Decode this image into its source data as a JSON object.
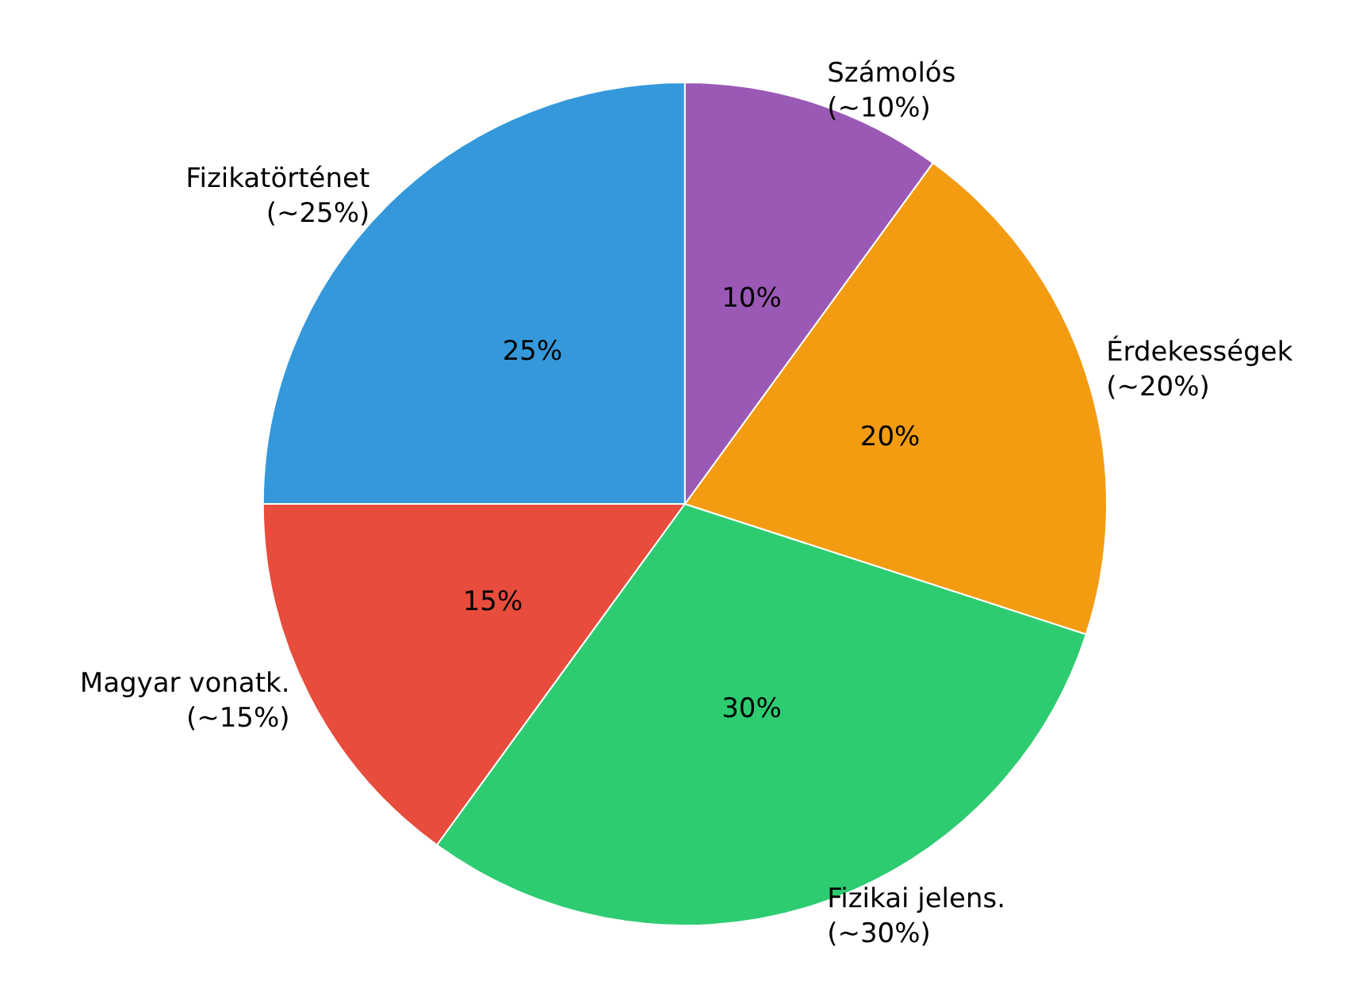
{
  "chart_data": {
    "type": "pie",
    "categories": [
      "Fizikatörténet\n(~25%)",
      "Magyar vonatk.\n(~15%)",
      "Fizikai jelens.\n(~30%)",
      "Érdekességek\n(~20%)",
      "Számolós\n(~10%)"
    ],
    "values": [
      25,
      15,
      30,
      20,
      10
    ],
    "value_labels": [
      "25%",
      "15%",
      "30%",
      "20%",
      "10%"
    ],
    "colors": [
      "#3498db",
      "#e74c3c",
      "#2ecc71",
      "#f39c12",
      "#9b59b6"
    ],
    "legend": false
  }
}
